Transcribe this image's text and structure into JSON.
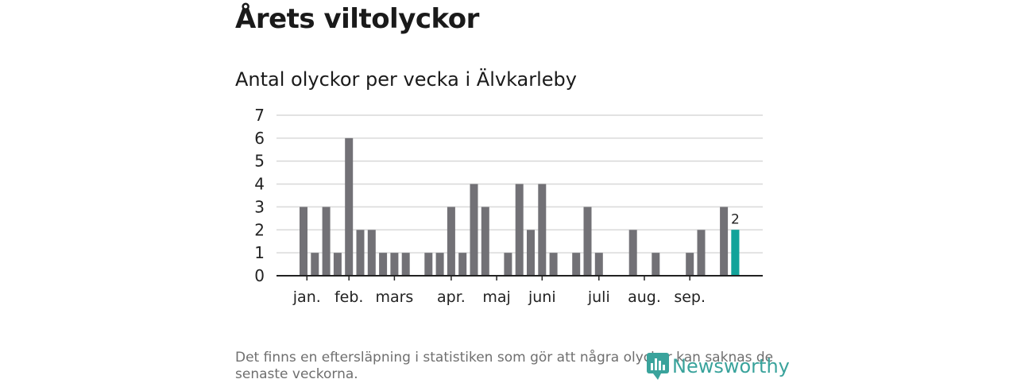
{
  "header": {
    "title": "Årets viltolyckor",
    "subtitle": "Antal olyckor per vecka i Älvkarleby"
  },
  "footnote": "Det finns en eftersläpning i statistiken som gör att några olyckor kan saknas de senaste veckorna.",
  "logo": {
    "text": "Newsworthy",
    "icon": "newsworthy-logo-icon",
    "color": "#3aa39c"
  },
  "chart_data": {
    "type": "bar",
    "title": "Antal olyckor per vecka i Älvkarleby",
    "xlabel": "",
    "ylabel": "",
    "ylim": [
      0,
      7
    ],
    "yticks": [
      0,
      1,
      2,
      3,
      4,
      5,
      6,
      7
    ],
    "grid": true,
    "x": [
      1,
      2,
      3,
      4,
      5,
      6,
      7,
      8,
      9,
      10,
      11,
      12,
      13,
      14,
      15,
      16,
      17,
      18,
      19,
      20,
      21,
      22,
      23,
      24,
      25,
      26,
      27,
      28,
      29,
      30,
      31,
      32,
      33,
      34,
      35,
      36,
      37,
      38,
      39,
      40
    ],
    "values": [
      3,
      1,
      3,
      1,
      6,
      2,
      2,
      1,
      1,
      1,
      0,
      1,
      1,
      3,
      1,
      4,
      3,
      0,
      1,
      4,
      2,
      4,
      1,
      0,
      1,
      3,
      1,
      0,
      0,
      2,
      0,
      1,
      0,
      0,
      1,
      2,
      0,
      3,
      2,
      null
    ],
    "month_labels": [
      {
        "label": "jan.",
        "week": 1.3
      },
      {
        "label": "feb.",
        "week": 5.0
      },
      {
        "label": "mars",
        "week": 9.0
      },
      {
        "label": "apr.",
        "week": 14.0
      },
      {
        "label": "maj",
        "week": 18.0
      },
      {
        "label": "juni",
        "week": 22.0
      },
      {
        "label": "juli",
        "week": 27.0
      },
      {
        "label": "aug.",
        "week": 31.0
      },
      {
        "label": "sep.",
        "week": 35.0
      }
    ],
    "highlight": {
      "week": 39,
      "value": 2,
      "label": "2"
    },
    "colors": {
      "bar": "#727176",
      "highlight": "#12a39a",
      "grid": "#d9d9d9",
      "axis": "#222222"
    }
  }
}
